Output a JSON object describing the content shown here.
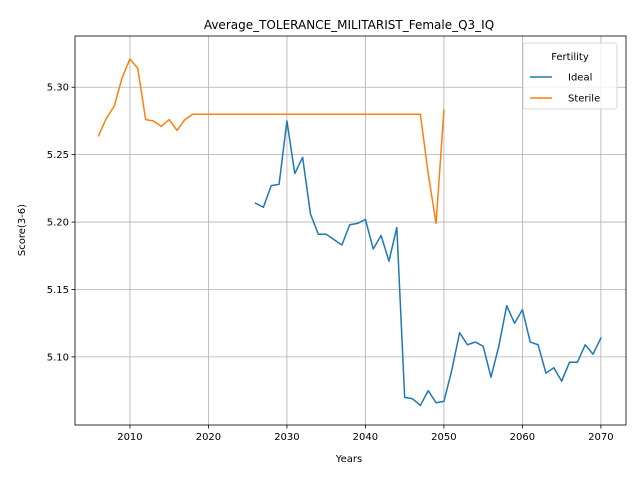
{
  "chart_data": {
    "type": "line",
    "title": "Average_TOLERANCE_MILITARIST_Female_Q3_IQ",
    "xlabel": "Years",
    "ylabel": "Score(3-6)",
    "xlim": [
      2003,
      2073.2
    ],
    "ylim": [
      5.0495,
      5.338
    ],
    "xticks": [
      2010,
      2020,
      2030,
      2040,
      2050,
      2060,
      2070
    ],
    "yticks": [
      5.1,
      5.15,
      5.2,
      5.25,
      5.3
    ],
    "grid": true,
    "legend": {
      "title": "Fertility",
      "placement": "top-right"
    },
    "series": [
      {
        "name": "Ideal",
        "color": "#1f77b4",
        "x": [
          2026,
          2027,
          2028,
          2029,
          2030,
          2031,
          2032,
          2033,
          2034,
          2035,
          2036,
          2037,
          2038,
          2039,
          2040,
          2041,
          2042,
          2043,
          2044,
          2045,
          2046,
          2047,
          2048,
          2049,
          2050,
          2051,
          2052,
          2053,
          2054,
          2055,
          2056,
          2057,
          2058,
          2059,
          2060,
          2061,
          2062,
          2063,
          2064,
          2065,
          2066,
          2067,
          2068,
          2069,
          2070
        ],
        "values": [
          5.214,
          5.211,
          5.227,
          5.228,
          5.275,
          5.236,
          5.248,
          5.206,
          5.191,
          5.191,
          5.187,
          5.183,
          5.198,
          5.199,
          5.202,
          5.18,
          5.19,
          5.171,
          5.196,
          5.07,
          5.069,
          5.064,
          5.075,
          5.066,
          5.067,
          5.09,
          5.118,
          5.109,
          5.111,
          5.108,
          5.085,
          5.108,
          5.138,
          5.125,
          5.135,
          5.111,
          5.109,
          5.088,
          5.092,
          5.082,
          5.096,
          5.096,
          5.109,
          5.102,
          5.114
        ]
      },
      {
        "name": "Sterile",
        "color": "#ff7f0e",
        "x": [
          2006,
          2007,
          2008,
          2009,
          2010,
          2011,
          2012,
          2013,
          2014,
          2015,
          2016,
          2017,
          2018,
          2019,
          2020,
          2021,
          2022,
          2023,
          2024,
          2025,
          2026,
          2027,
          2028,
          2029,
          2030,
          2031,
          2032,
          2033,
          2034,
          2035,
          2036,
          2037,
          2038,
          2039,
          2040,
          2041,
          2042,
          2043,
          2044,
          2045,
          2046,
          2047,
          2048,
          2049,
          2050
        ],
        "values": [
          5.264,
          5.277,
          5.286,
          5.307,
          5.321,
          5.314,
          5.276,
          5.275,
          5.271,
          5.276,
          5.268,
          5.276,
          5.28,
          5.28,
          5.28,
          5.28,
          5.28,
          5.28,
          5.28,
          5.28,
          5.28,
          5.28,
          5.28,
          5.28,
          5.28,
          5.28,
          5.28,
          5.28,
          5.28,
          5.28,
          5.28,
          5.28,
          5.28,
          5.28,
          5.28,
          5.28,
          5.28,
          5.28,
          5.28,
          5.28,
          5.28,
          5.28,
          5.236,
          5.199,
          5.283
        ]
      }
    ]
  }
}
